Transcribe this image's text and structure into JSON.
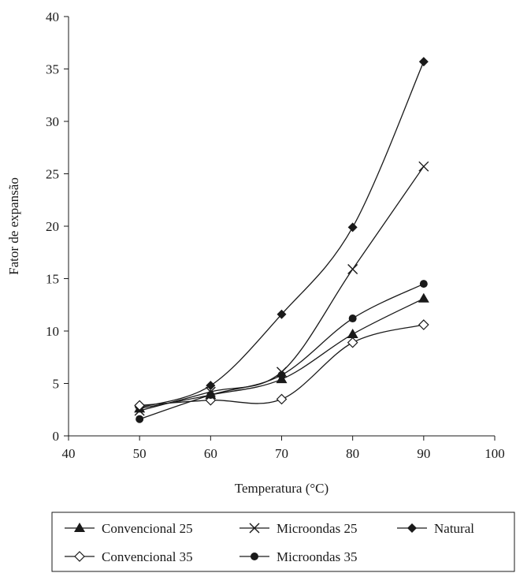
{
  "chart_data": {
    "type": "line",
    "title": "",
    "xlabel": "Temperatura (°C)",
    "ylabel": "Fator de expansão",
    "xlim": [
      40,
      100
    ],
    "ylim": [
      0,
      40
    ],
    "xticks": [
      40,
      50,
      60,
      70,
      80,
      90,
      100
    ],
    "yticks": [
      0,
      5,
      10,
      15,
      20,
      25,
      30,
      35,
      40
    ],
    "grid": false,
    "legend_position": "bottom",
    "x": [
      50,
      60,
      70,
      80,
      90
    ],
    "series": [
      {
        "name": "Convencional 25",
        "marker": "triangle",
        "values": [
          2.6,
          3.9,
          5.4,
          9.7,
          13.1
        ]
      },
      {
        "name": "Microondas 25",
        "marker": "x",
        "values": [
          2.4,
          4.2,
          6.1,
          15.9,
          25.7
        ]
      },
      {
        "name": "Natural",
        "marker": "diamond-filled",
        "values": [
          2.7,
          4.8,
          11.6,
          19.9,
          35.7
        ]
      },
      {
        "name": "Convencional 35",
        "marker": "diamond-open",
        "values": [
          2.9,
          3.4,
          3.5,
          8.9,
          10.6
        ]
      },
      {
        "name": "Microondas 35",
        "marker": "circle",
        "values": [
          1.6,
          3.9,
          5.8,
          11.2,
          14.5
        ]
      }
    ]
  }
}
